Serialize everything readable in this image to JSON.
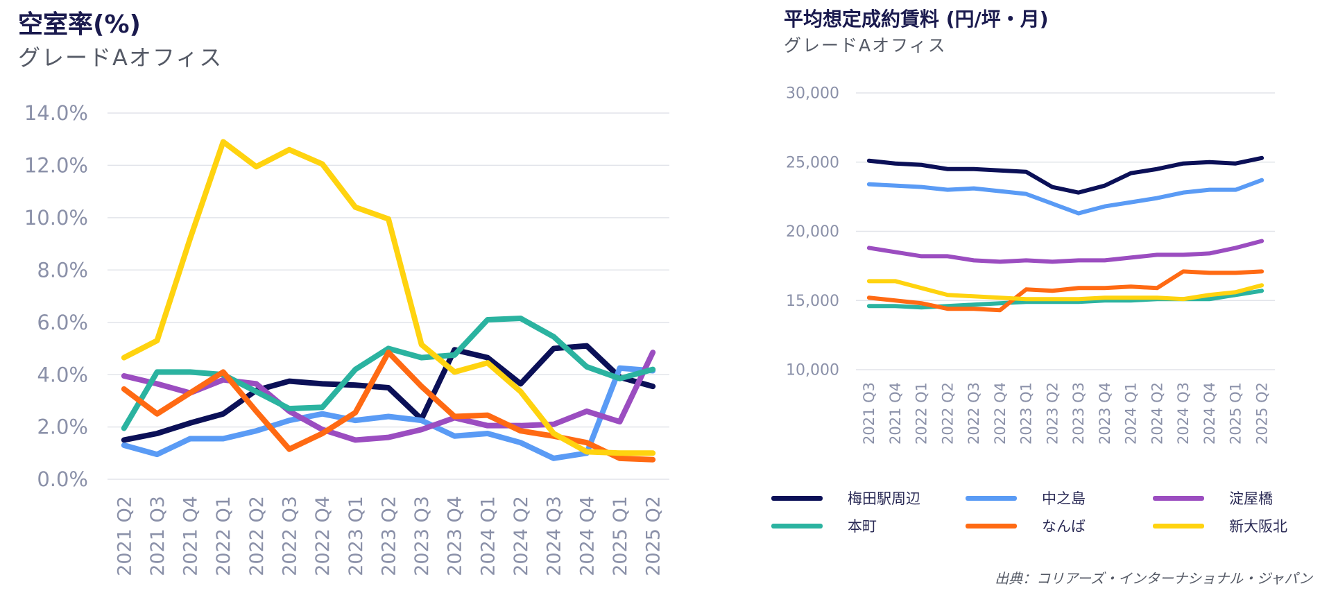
{
  "left": {
    "title": "空室率(%)",
    "subtitle": "グレードAオフィス"
  },
  "right": {
    "title": "平均想定成約賃料 (円/坪・月)",
    "subtitle": "グレードAオフィス"
  },
  "source": "出典：コリアーズ・インターナショナル・ジャパン",
  "legend": [
    {
      "name": "梅田駅周辺",
      "color": "#0b1057"
    },
    {
      "name": "中之島",
      "color": "#5a9bf5"
    },
    {
      "name": "淀屋橋",
      "color": "#9b4dc0"
    },
    {
      "name": "本町",
      "color": "#2bb3a0"
    },
    {
      "name": "なんば",
      "color": "#ff6a13"
    },
    {
      "name": "新大阪北",
      "color": "#ffd30f"
    }
  ],
  "chart_data": [
    {
      "type": "line",
      "title": "空室率(%)",
      "subtitle": "グレードAオフィス",
      "categories": [
        "2021 Q2",
        "2021 Q3",
        "2021 Q4",
        "2022 Q1",
        "2022 Q2",
        "2022 Q3",
        "2022 Q4",
        "2023 Q1",
        "2023 Q2",
        "2023 Q3",
        "2023 Q4",
        "2024 Q1",
        "2024 Q2",
        "2024 Q3",
        "2024 Q4",
        "2025 Q1",
        "2025 Q2"
      ],
      "ylim": [
        0,
        14
      ],
      "yticks": [
        "0.0%",
        "2.0%",
        "4.0%",
        "6.0%",
        "8.0%",
        "10.0%",
        "12.0%",
        "14.0%"
      ],
      "grid": true,
      "series": [
        {
          "name": "梅田駅周辺",
          "color": "#0b1057",
          "values": [
            1.5,
            1.75,
            2.15,
            2.5,
            3.4,
            3.75,
            3.65,
            3.6,
            3.5,
            2.3,
            4.95,
            4.65,
            3.65,
            5.0,
            5.1,
            3.9,
            3.55
          ]
        },
        {
          "name": "中之島",
          "color": "#5a9bf5",
          "values": [
            1.3,
            0.95,
            1.55,
            1.55,
            1.85,
            2.25,
            2.5,
            2.25,
            2.4,
            2.25,
            1.65,
            1.75,
            1.4,
            0.8,
            1.0,
            4.25,
            4.15
          ]
        },
        {
          "name": "淀屋橋",
          "color": "#9b4dc0",
          "values": [
            3.95,
            3.65,
            3.3,
            3.8,
            3.65,
            2.6,
            1.9,
            1.5,
            1.6,
            1.9,
            2.35,
            2.05,
            2.05,
            2.1,
            2.6,
            2.2,
            4.85
          ]
        },
        {
          "name": "本町",
          "color": "#2bb3a0",
          "values": [
            1.95,
            4.1,
            4.1,
            4.0,
            3.35,
            2.7,
            2.75,
            4.2,
            5.0,
            4.65,
            4.75,
            6.1,
            6.15,
            5.45,
            4.3,
            3.85,
            4.2
          ]
        },
        {
          "name": "なんば",
          "color": "#ff6a13",
          "values": [
            3.45,
            2.5,
            3.3,
            4.1,
            2.6,
            1.15,
            1.75,
            2.55,
            4.85,
            3.55,
            2.4,
            2.45,
            1.85,
            1.65,
            1.4,
            0.8,
            0.75
          ]
        },
        {
          "name": "新大阪北",
          "color": "#ffd30f",
          "values": [
            4.65,
            5.3,
            9.2,
            12.9,
            11.95,
            12.6,
            12.05,
            10.4,
            9.95,
            5.15,
            4.1,
            4.45,
            3.35,
            1.75,
            1.05,
            1.0,
            1.0
          ]
        }
      ]
    },
    {
      "type": "line",
      "title": "平均想定成約賃料 (円/坪・月)",
      "subtitle": "グレードAオフィス",
      "categories": [
        "2021 Q3",
        "2021 Q4",
        "2022 Q1",
        "2022 Q2",
        "2022 Q3",
        "2022 Q4",
        "2023 Q1",
        "2023 Q2",
        "2023 Q3",
        "2023 Q4",
        "2024 Q1",
        "2024 Q2",
        "2024 Q3",
        "2024 Q4",
        "2025 Q1",
        "2025 Q2"
      ],
      "ylim": [
        10000,
        30000
      ],
      "yticks": [
        "10,000",
        "15,000",
        "20,000",
        "25,000",
        "30,000"
      ],
      "grid": true,
      "series": [
        {
          "name": "梅田駅周辺",
          "color": "#0b1057",
          "values": [
            25100,
            24900,
            24800,
            24500,
            24500,
            24400,
            24300,
            23200,
            22800,
            23300,
            24200,
            24500,
            24900,
            25000,
            24900,
            25300
          ]
        },
        {
          "name": "中之島",
          "color": "#5a9bf5",
          "values": [
            23400,
            23300,
            23200,
            23000,
            23100,
            22900,
            22700,
            22000,
            21300,
            21800,
            22100,
            22400,
            22800,
            23000,
            23000,
            23700
          ]
        },
        {
          "name": "淀屋橋",
          "color": "#9b4dc0",
          "values": [
            18800,
            18500,
            18200,
            18200,
            17900,
            17800,
            17900,
            17800,
            17900,
            17900,
            18100,
            18300,
            18300,
            18400,
            18800,
            19300
          ]
        },
        {
          "name": "本町",
          "color": "#2bb3a0",
          "values": [
            14600,
            14600,
            14500,
            14600,
            14700,
            14800,
            14900,
            14900,
            14900,
            15000,
            15000,
            15100,
            15100,
            15100,
            15400,
            15700
          ]
        },
        {
          "name": "なんば",
          "color": "#ff6a13",
          "values": [
            15200,
            15000,
            14800,
            14400,
            14400,
            14300,
            15800,
            15700,
            15900,
            15900,
            16000,
            15900,
            17100,
            17000,
            17000,
            17100
          ]
        },
        {
          "name": "新大阪北",
          "color": "#ffd30f",
          "values": [
            16400,
            16400,
            15900,
            15400,
            15300,
            15200,
            15100,
            15100,
            15100,
            15200,
            15200,
            15200,
            15100,
            15400,
            15600,
            16100
          ]
        }
      ]
    }
  ]
}
